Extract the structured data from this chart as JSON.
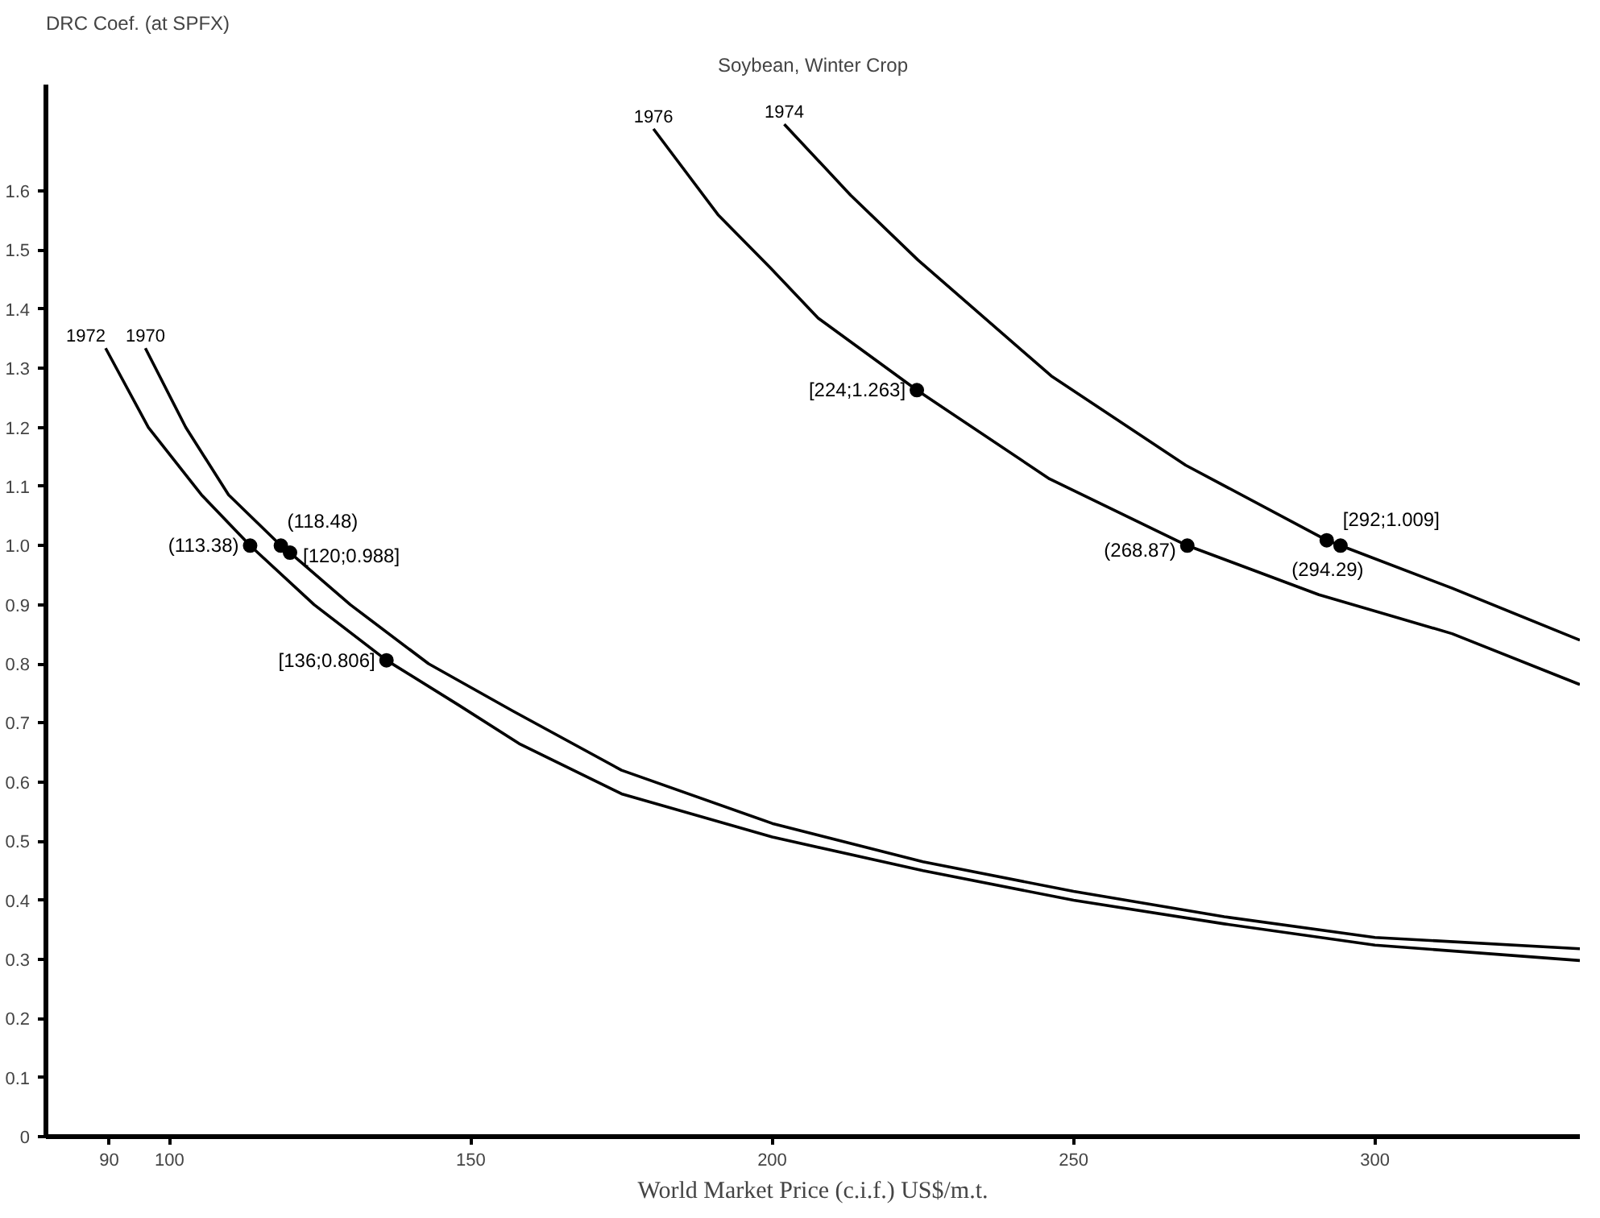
{
  "chart_data": {
    "type": "line",
    "title": "Soybean, Winter Crop",
    "ylabel": "DRC Coef. (at SPFX)",
    "xlabel": "World Market Price (c.i.f.) US$/m.t.",
    "xlim": [
      79.5,
      334
    ],
    "xticks": [
      90,
      100,
      150,
      200,
      250,
      300
    ],
    "ylim": [
      0,
      1.78
    ],
    "yticks": [
      0,
      0.1,
      0.2,
      0.3,
      0.4,
      0.5,
      0.6,
      0.7,
      0.8,
      0.9,
      {
        "value": 1,
        "label": "1.0"
      },
      1.1,
      1.2,
      1.3,
      1.4,
      1.5,
      1.6
    ],
    "grid": false,
    "line_style": "solid",
    "series": [
      {
        "name": "1972",
        "color": "#000000",
        "x": [
          89.4,
          96.5,
          105.3,
          113.38,
          124,
          136,
          148,
          158,
          175,
          200,
          225,
          250,
          275,
          300,
          334
        ],
        "values": [
          1.334,
          1.2,
          1.086,
          1.0,
          0.9,
          0.806,
          0.73,
          0.665,
          0.58,
          0.507,
          0.45,
          0.4,
          0.36,
          0.324,
          0.298
        ]
      },
      {
        "name": "1970",
        "color": "#000000",
        "x": [
          96,
          102.7,
          109.8,
          118.48,
          120,
          130,
          143,
          157,
          175,
          200,
          225,
          250,
          275,
          300,
          334
        ],
        "values": [
          1.334,
          1.2,
          1.086,
          1.0,
          0.988,
          0.9,
          0.8,
          0.72,
          0.62,
          0.53,
          0.465,
          0.415,
          0.372,
          0.337,
          0.318
        ]
      },
      {
        "name": "1976",
        "color": "#000000",
        "x": [
          180.3,
          191,
          199.7,
          207.6,
          224,
          246,
          268.87,
          290.7,
          312.8,
          334
        ],
        "values": [
          1.705,
          1.56,
          1.47,
          1.385,
          1.263,
          1.113,
          1.0,
          0.917,
          0.851,
          0.765
        ]
      },
      {
        "name": "1974",
        "color": "#000000",
        "x": [
          202,
          213,
          224.2,
          246.3,
          268.6,
          292,
          294.29,
          312.8,
          334
        ],
        "values": [
          1.713,
          1.593,
          1.483,
          1.287,
          1.136,
          1.009,
          1.0,
          0.928,
          0.84
        ]
      },
      {
        "type": "scatter",
        "marker": "circle",
        "color": "#000000",
        "x": [
          113.38,
          118.48,
          120,
          136,
          224,
          268.87,
          292,
          294.29
        ],
        "values": [
          1.0,
          1.0,
          0.988,
          0.806,
          1.263,
          1.0,
          1.009,
          1.0
        ]
      }
    ],
    "annotations": [
      {
        "text": "(113.38)",
        "x": 113.38,
        "y": 1.0
      },
      {
        "text": "(118.48)",
        "x": 118.48,
        "y": 1.0
      },
      {
        "text": "[120;0.988]",
        "x": 120,
        "y": 0.988
      },
      {
        "text": "[136;0.806]",
        "x": 136,
        "y": 0.806
      },
      {
        "text": "[224;1.263]",
        "x": 224,
        "y": 1.263
      },
      {
        "text": "(268.87)",
        "x": 268.87,
        "y": 1.0
      },
      {
        "text": "[292;1.009]",
        "x": 292,
        "y": 1.009
      },
      {
        "text": "(294.29)",
        "x": 294.29,
        "y": 1.0
      }
    ]
  }
}
